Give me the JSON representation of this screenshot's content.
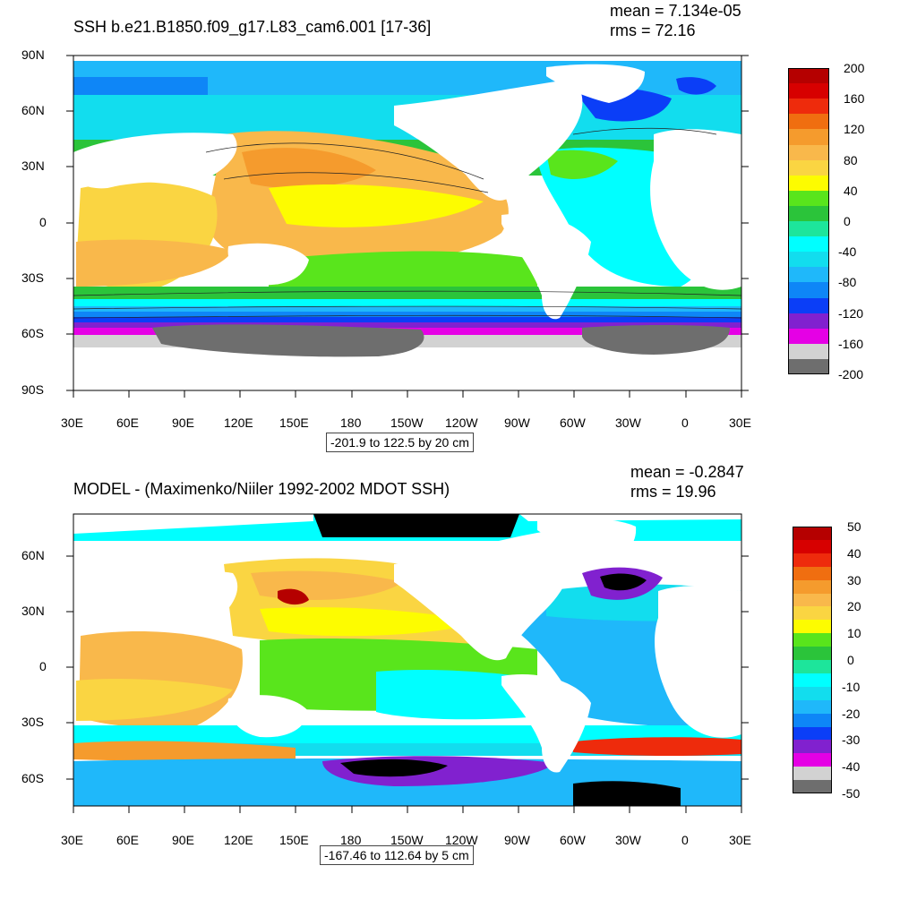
{
  "panels": [
    {
      "title": "SSH b.e21.B1850.f09_g17.L83_cam6.001 [17-36]",
      "mean_label": "mean = 7.134e-05",
      "rms_label": "rms = 72.16",
      "caption": "-201.9 to 122.5 by 20 cm",
      "lat_labels": [
        "90N",
        "60N",
        "30N",
        "0",
        "30S",
        "60S",
        "90S"
      ],
      "lon_labels": [
        "30E",
        "60E",
        "90E",
        "120E",
        "150E",
        "180",
        "150W",
        "120W",
        "90W",
        "60W",
        "30W",
        "0",
        "30E"
      ],
      "colorbar": {
        "labels": [
          "200",
          "160",
          "120",
          "80",
          "40",
          "0",
          "-40",
          "-80",
          "-120",
          "-160",
          "-200"
        ],
        "colors": [
          "#b50000",
          "#d70000",
          "#ee2b0c",
          "#f06e10",
          "#f59b2d",
          "#f9b84b",
          "#fad542",
          "#fdfc00",
          "#59e51c",
          "#2bc43a",
          "#1de59b",
          "#00ffff",
          "#12ddee",
          "#1fb8fa",
          "#0e86f7",
          "#0b3ef7",
          "#8121cf",
          "#e500e5",
          "#d2d2d2",
          "#6e6e6e"
        ]
      }
    },
    {
      "title": "MODEL - (Maximenko/Niiler 1992-2002 MDOT SSH)",
      "mean_label": "mean = -0.2847",
      "rms_label": "rms = 19.96",
      "caption": "-167.46 to 112.64 by 5 cm",
      "lat_labels": [
        "60N",
        "30N",
        "0",
        "30S",
        "60S"
      ],
      "lon_labels": [
        "30E",
        "60E",
        "90E",
        "120E",
        "150E",
        "180",
        "150W",
        "120W",
        "90W",
        "60W",
        "30W",
        "0",
        "30E"
      ],
      "colorbar": {
        "labels": [
          "50",
          "40",
          "30",
          "20",
          "10",
          "0",
          "-10",
          "-20",
          "-30",
          "-40",
          "-50"
        ],
        "colors": [
          "#b50000",
          "#d70000",
          "#ee2b0c",
          "#f06e10",
          "#f59b2d",
          "#f9b84b",
          "#fad542",
          "#fdfc00",
          "#59e51c",
          "#2bc43a",
          "#1de59b",
          "#00ffff",
          "#12ddee",
          "#1fb8fa",
          "#0e86f7",
          "#0b3ef7",
          "#8121cf",
          "#e500e5",
          "#d2d2d2",
          "#6e6e6e"
        ]
      }
    }
  ]
}
